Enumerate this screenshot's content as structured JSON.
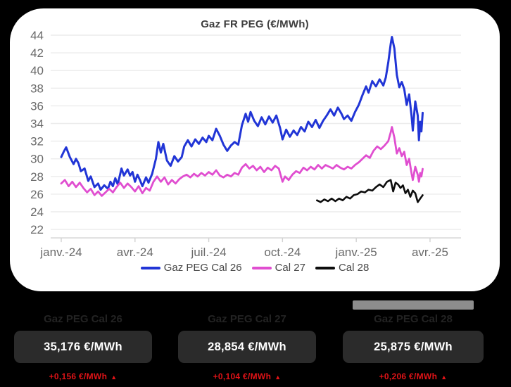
{
  "page": {
    "background": "#000000"
  },
  "chart": {
    "title": "Gaz FR PEG (€/MWh)"
  },
  "chart_data": {
    "type": "line",
    "title": "Gaz FR PEG (€/MWh)",
    "xlabel": "",
    "ylabel": "€/MWh",
    "x_unit": "months since janv.-24",
    "x_tick_labels": [
      "janv.-24",
      "avr.-24",
      "juil.-24",
      "oct.-24",
      "janv.-25",
      "avr.-25"
    ],
    "x_tick_months": [
      0,
      3,
      6,
      9,
      12,
      15
    ],
    "ylim": [
      22,
      44
    ],
    "y_ticks": [
      22,
      24,
      26,
      28,
      30,
      32,
      34,
      36,
      38,
      40,
      42,
      44
    ],
    "grid": true,
    "legend_position": "bottom",
    "series": [
      {
        "name": "Gaz PEG Cal 26",
        "color": "#2135d6",
        "points": [
          [
            0,
            30.2
          ],
          [
            0.1,
            30.8
          ],
          [
            0.2,
            31.3
          ],
          [
            0.35,
            30.2
          ],
          [
            0.5,
            29.4
          ],
          [
            0.6,
            30.0
          ],
          [
            0.7,
            29.5
          ],
          [
            0.8,
            28.6
          ],
          [
            0.95,
            28.9
          ],
          [
            1.1,
            27.5
          ],
          [
            1.2,
            28.0
          ],
          [
            1.35,
            26.8
          ],
          [
            1.5,
            27.2
          ],
          [
            1.6,
            26.5
          ],
          [
            1.75,
            27.0
          ],
          [
            1.9,
            26.6
          ],
          [
            2.0,
            27.4
          ],
          [
            2.1,
            26.9
          ],
          [
            2.2,
            27.8
          ],
          [
            2.3,
            27.1
          ],
          [
            2.45,
            28.9
          ],
          [
            2.55,
            28.1
          ],
          [
            2.7,
            28.8
          ],
          [
            2.8,
            28.1
          ],
          [
            2.9,
            28.5
          ],
          [
            3.0,
            27.4
          ],
          [
            3.1,
            28.2
          ],
          [
            3.2,
            27.6
          ],
          [
            3.3,
            26.9
          ],
          [
            3.45,
            27.9
          ],
          [
            3.55,
            27.3
          ],
          [
            3.7,
            28.3
          ],
          [
            3.85,
            30.0
          ],
          [
            3.95,
            31.9
          ],
          [
            4.05,
            30.7
          ],
          [
            4.15,
            31.7
          ],
          [
            4.3,
            29.8
          ],
          [
            4.45,
            29.2
          ],
          [
            4.6,
            30.3
          ],
          [
            4.75,
            29.7
          ],
          [
            4.9,
            30.2
          ],
          [
            5.0,
            31.4
          ],
          [
            5.15,
            32.1
          ],
          [
            5.3,
            31.4
          ],
          [
            5.45,
            32.2
          ],
          [
            5.6,
            31.7
          ],
          [
            5.75,
            32.4
          ],
          [
            5.9,
            31.9
          ],
          [
            6.0,
            32.6
          ],
          [
            6.15,
            32.1
          ],
          [
            6.3,
            33.4
          ],
          [
            6.45,
            32.6
          ],
          [
            6.6,
            31.6
          ],
          [
            6.75,
            30.9
          ],
          [
            6.9,
            31.5
          ],
          [
            7.05,
            31.9
          ],
          [
            7.2,
            31.6
          ],
          [
            7.35,
            33.8
          ],
          [
            7.5,
            35.1
          ],
          [
            7.6,
            34.2
          ],
          [
            7.7,
            35.3
          ],
          [
            7.85,
            34.3
          ],
          [
            8.0,
            33.7
          ],
          [
            8.15,
            34.7
          ],
          [
            8.3,
            33.9
          ],
          [
            8.45,
            34.8
          ],
          [
            8.6,
            34.1
          ],
          [
            8.75,
            34.9
          ],
          [
            8.9,
            33.5
          ],
          [
            9.0,
            32.2
          ],
          [
            9.15,
            33.3
          ],
          [
            9.3,
            32.5
          ],
          [
            9.45,
            33.2
          ],
          [
            9.6,
            32.7
          ],
          [
            9.75,
            33.6
          ],
          [
            9.9,
            33.1
          ],
          [
            10.05,
            34.2
          ],
          [
            10.2,
            33.6
          ],
          [
            10.35,
            34.4
          ],
          [
            10.5,
            33.5
          ],
          [
            10.65,
            34.3
          ],
          [
            10.8,
            34.9
          ],
          [
            10.95,
            35.6
          ],
          [
            11.1,
            34.9
          ],
          [
            11.25,
            35.8
          ],
          [
            11.4,
            35.1
          ],
          [
            11.5,
            34.5
          ],
          [
            11.65,
            34.9
          ],
          [
            11.8,
            34.3
          ],
          [
            11.95,
            35.3
          ],
          [
            12.1,
            36.1
          ],
          [
            12.25,
            37.2
          ],
          [
            12.4,
            38.2
          ],
          [
            12.5,
            37.5
          ],
          [
            12.65,
            38.8
          ],
          [
            12.8,
            38.2
          ],
          [
            12.95,
            39.0
          ],
          [
            13.1,
            38.3
          ],
          [
            13.2,
            39.2
          ],
          [
            13.3,
            40.9
          ],
          [
            13.4,
            43.0
          ],
          [
            13.45,
            43.8
          ],
          [
            13.55,
            42.5
          ],
          [
            13.65,
            39.5
          ],
          [
            13.75,
            38.1
          ],
          [
            13.85,
            38.7
          ],
          [
            13.95,
            37.9
          ],
          [
            14.05,
            36.1
          ],
          [
            14.15,
            37.3
          ],
          [
            14.25,
            34.8
          ],
          [
            14.3,
            33.2
          ],
          [
            14.4,
            36.5
          ],
          [
            14.5,
            34.9
          ],
          [
            14.55,
            32.1
          ],
          [
            14.6,
            34.2
          ],
          [
            14.65,
            33.1
          ],
          [
            14.7,
            35.2
          ]
        ]
      },
      {
        "name": "Cal 27",
        "color": "#e04ed0",
        "points": [
          [
            0,
            27.2
          ],
          [
            0.15,
            27.6
          ],
          [
            0.3,
            26.9
          ],
          [
            0.45,
            27.4
          ],
          [
            0.6,
            26.8
          ],
          [
            0.75,
            27.3
          ],
          [
            0.9,
            26.7
          ],
          [
            1.05,
            26.2
          ],
          [
            1.2,
            26.6
          ],
          [
            1.35,
            25.9
          ],
          [
            1.5,
            26.3
          ],
          [
            1.65,
            25.8
          ],
          [
            1.8,
            26.2
          ],
          [
            1.95,
            26.6
          ],
          [
            2.1,
            26.2
          ],
          [
            2.25,
            26.8
          ],
          [
            2.4,
            27.3
          ],
          [
            2.55,
            26.7
          ],
          [
            2.7,
            27.2
          ],
          [
            2.85,
            26.8
          ],
          [
            3.0,
            26.3
          ],
          [
            3.15,
            26.9
          ],
          [
            3.3,
            26.1
          ],
          [
            3.45,
            26.7
          ],
          [
            3.6,
            26.4
          ],
          [
            3.75,
            27.4
          ],
          [
            3.9,
            28.0
          ],
          [
            4.05,
            27.4
          ],
          [
            4.2,
            27.9
          ],
          [
            4.35,
            27.1
          ],
          [
            4.5,
            27.6
          ],
          [
            4.65,
            27.2
          ],
          [
            4.8,
            27.7
          ],
          [
            4.95,
            28.0
          ],
          [
            5.1,
            28.2
          ],
          [
            5.25,
            27.9
          ],
          [
            5.4,
            28.3
          ],
          [
            5.55,
            28.0
          ],
          [
            5.7,
            28.4
          ],
          [
            5.85,
            28.1
          ],
          [
            6.0,
            28.5
          ],
          [
            6.15,
            28.2
          ],
          [
            6.3,
            28.7
          ],
          [
            6.45,
            28.1
          ],
          [
            6.6,
            27.9
          ],
          [
            6.75,
            28.2
          ],
          [
            6.9,
            28.0
          ],
          [
            7.05,
            28.4
          ],
          [
            7.2,
            28.2
          ],
          [
            7.35,
            29.0
          ],
          [
            7.5,
            29.4
          ],
          [
            7.65,
            28.9
          ],
          [
            7.8,
            29.2
          ],
          [
            7.95,
            28.7
          ],
          [
            8.1,
            29.1
          ],
          [
            8.25,
            28.5
          ],
          [
            8.4,
            29.0
          ],
          [
            8.55,
            28.7
          ],
          [
            8.7,
            29.2
          ],
          [
            8.85,
            28.9
          ],
          [
            9.0,
            27.4
          ],
          [
            9.1,
            28.0
          ],
          [
            9.25,
            27.6
          ],
          [
            9.4,
            28.2
          ],
          [
            9.55,
            28.6
          ],
          [
            9.7,
            28.4
          ],
          [
            9.85,
            29.0
          ],
          [
            10.0,
            28.7
          ],
          [
            10.15,
            29.1
          ],
          [
            10.3,
            28.8
          ],
          [
            10.45,
            29.3
          ],
          [
            10.6,
            28.9
          ],
          [
            10.75,
            29.3
          ],
          [
            10.9,
            29.1
          ],
          [
            11.05,
            28.9
          ],
          [
            11.2,
            29.3
          ],
          [
            11.35,
            29.0
          ],
          [
            11.5,
            28.8
          ],
          [
            11.65,
            29.1
          ],
          [
            11.8,
            28.9
          ],
          [
            11.95,
            29.3
          ],
          [
            12.1,
            29.6
          ],
          [
            12.25,
            30.0
          ],
          [
            12.4,
            30.4
          ],
          [
            12.55,
            30.1
          ],
          [
            12.7,
            30.9
          ],
          [
            12.85,
            31.4
          ],
          [
            13.0,
            31.1
          ],
          [
            13.15,
            31.5
          ],
          [
            13.3,
            32.0
          ],
          [
            13.4,
            33.0
          ],
          [
            13.45,
            33.6
          ],
          [
            13.55,
            32.4
          ],
          [
            13.65,
            30.6
          ],
          [
            13.75,
            31.2
          ],
          [
            13.85,
            30.3
          ],
          [
            13.95,
            30.8
          ],
          [
            14.05,
            29.3
          ],
          [
            14.15,
            30.0
          ],
          [
            14.25,
            28.3
          ],
          [
            14.3,
            27.6
          ],
          [
            14.4,
            29.1
          ],
          [
            14.5,
            28.2
          ],
          [
            14.55,
            27.4
          ],
          [
            14.6,
            28.4
          ],
          [
            14.65,
            28.0
          ],
          [
            14.7,
            28.85
          ]
        ]
      },
      {
        "name": "Cal 28",
        "color": "#0d0d0d",
        "points": [
          [
            10.4,
            25.3
          ],
          [
            10.55,
            25.1
          ],
          [
            10.7,
            25.4
          ],
          [
            10.85,
            25.2
          ],
          [
            11.0,
            25.5
          ],
          [
            11.15,
            25.2
          ],
          [
            11.3,
            25.5
          ],
          [
            11.45,
            25.3
          ],
          [
            11.6,
            25.7
          ],
          [
            11.75,
            25.5
          ],
          [
            11.9,
            25.9
          ],
          [
            12.05,
            26.0
          ],
          [
            12.2,
            26.3
          ],
          [
            12.35,
            26.2
          ],
          [
            12.5,
            26.5
          ],
          [
            12.65,
            26.4
          ],
          [
            12.8,
            26.8
          ],
          [
            12.95,
            27.1
          ],
          [
            13.1,
            26.8
          ],
          [
            13.25,
            27.4
          ],
          [
            13.4,
            27.6
          ],
          [
            13.5,
            26.3
          ],
          [
            13.6,
            27.3
          ],
          [
            13.7,
            27.1
          ],
          [
            13.8,
            26.7
          ],
          [
            13.9,
            27.0
          ],
          [
            14.0,
            26.1
          ],
          [
            14.1,
            26.5
          ],
          [
            14.2,
            25.7
          ],
          [
            14.3,
            26.4
          ],
          [
            14.4,
            26.1
          ],
          [
            14.5,
            25.1
          ],
          [
            14.6,
            25.5
          ],
          [
            14.7,
            25.88
          ]
        ]
      }
    ]
  },
  "cards": [
    {
      "title": "Gaz PEG Cal 26",
      "value": "35,176 €/MWh",
      "delta": "+0,156 €/MWh",
      "delta_icon": "▲"
    },
    {
      "title": "Gaz PEG Cal 27",
      "value": "28,854 €/MWh",
      "delta": "+0,104 €/MWh",
      "delta_icon": "▲"
    },
    {
      "title": "Gaz PEG Cal 28",
      "value": "25,875 €/MWh",
      "delta": "+0,206 €/MWh",
      "delta_icon": "▲"
    }
  ],
  "colors": {
    "page_background": "#000000",
    "card_background": "#ffffff",
    "badge_background": "#2b2b2b",
    "grid_line": "#ececec",
    "axis_line": "#d2d2d2",
    "tick_label": "#6a6a6a",
    "title_text": "#3d3d3d",
    "legend_text": "#474747",
    "delta_red": "#e01317",
    "series_cal26": "#2135d6",
    "series_cal27": "#e04ed0",
    "series_cal28": "#0d0d0d"
  }
}
